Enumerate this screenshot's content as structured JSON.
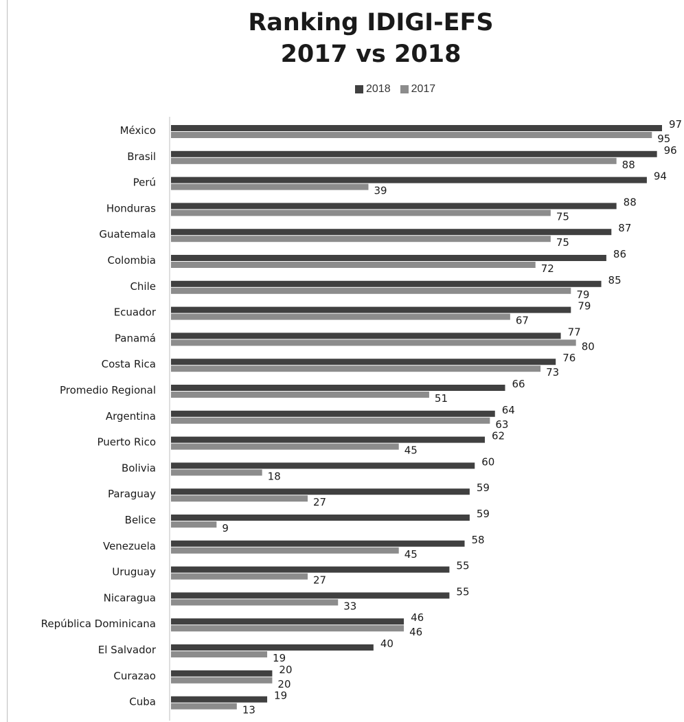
{
  "chart_data": {
    "type": "bar",
    "orientation": "horizontal",
    "title": [
      "Ranking IDIGI-EFS",
      "2017 vs 2018"
    ],
    "legend_position": "top",
    "categories": [
      "México",
      "Brasil",
      "Perú",
      "Honduras",
      "Guatemala",
      "Colombia",
      "Chile",
      "Ecuador",
      "Panamá",
      "Costa Rica",
      "Promedio Regional",
      "Argentina",
      "Puerto Rico",
      "Bolivia",
      "Paraguay",
      "Belice",
      "Venezuela",
      "Uruguay",
      "Nicaragua",
      "República Dominicana",
      "El Salvador",
      "Curazao",
      "Cuba"
    ],
    "series": [
      {
        "name": "2018",
        "color": "#404040",
        "values": [
          97,
          96,
          94,
          88,
          87,
          86,
          85,
          79,
          77,
          76,
          66,
          64,
          62,
          60,
          59,
          59,
          58,
          55,
          55,
          46,
          40,
          20,
          19
        ]
      },
      {
        "name": "2017",
        "color": "#8c8c8c",
        "values": [
          95,
          88,
          39,
          75,
          75,
          72,
          79,
          67,
          80,
          73,
          51,
          63,
          45,
          18,
          27,
          9,
          45,
          27,
          33,
          46,
          19,
          20,
          13
        ]
      }
    ],
    "data_labels": true,
    "grid": false,
    "xlim": [
      0,
      97
    ]
  }
}
